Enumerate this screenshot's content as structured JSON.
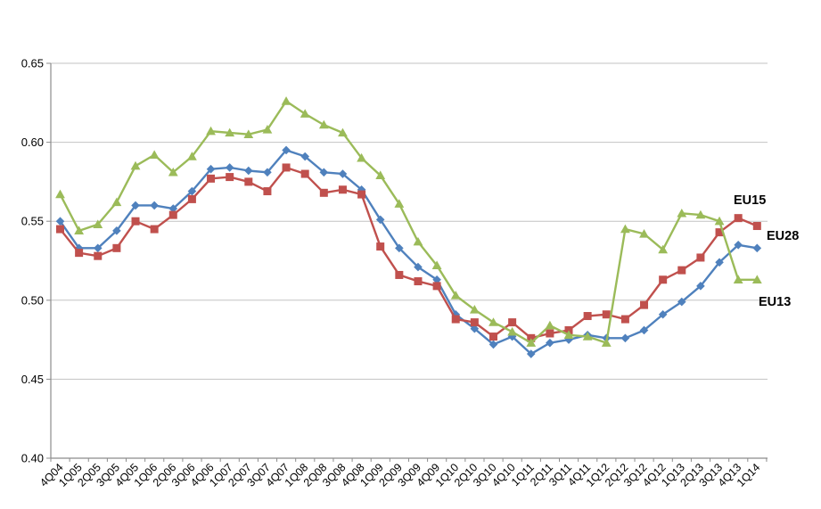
{
  "chart_data": {
    "type": "line",
    "title": "",
    "xlabel": "",
    "ylabel": "",
    "ylim": [
      0.4,
      0.65
    ],
    "ytick_step": 0.05,
    "ytick_labels": [
      "0.40",
      "0.45",
      "0.50",
      "0.55",
      "0.60",
      "0.65"
    ],
    "grid": true,
    "legend_position": "end-of-line-annotations",
    "categories": [
      "4Q04",
      "1Q05",
      "2Q05",
      "3Q05",
      "4Q05",
      "1Q06",
      "2Q06",
      "3Q06",
      "4Q06",
      "1Q07",
      "2Q07",
      "3Q07",
      "4Q07",
      "1Q08",
      "2Q08",
      "3Q08",
      "4Q08",
      "1Q09",
      "2Q09",
      "3Q09",
      "4Q09",
      "1Q10",
      "2Q10",
      "3Q10",
      "4Q10",
      "1Q11",
      "2Q11",
      "3Q11",
      "4Q11",
      "1Q12",
      "2Q12",
      "3Q12",
      "4Q12",
      "1Q13",
      "2Q13",
      "3Q13",
      "4Q13",
      "1Q14"
    ],
    "series": [
      {
        "name": "EU28",
        "color": "#4F81BD",
        "marker": "diamond",
        "values": [
          0.55,
          0.533,
          0.533,
          0.544,
          0.56,
          0.56,
          0.558,
          0.569,
          0.583,
          0.584,
          0.582,
          0.581,
          0.595,
          0.591,
          0.581,
          0.58,
          0.57,
          0.551,
          0.533,
          0.521,
          0.513,
          0.491,
          0.482,
          0.472,
          0.477,
          0.466,
          0.473,
          0.475,
          0.478,
          0.476,
          0.476,
          0.481,
          0.491,
          0.499,
          0.509,
          0.524,
          0.535,
          0.533
        ]
      },
      {
        "name": "EU15",
        "color": "#C0504D",
        "marker": "square",
        "values": [
          0.545,
          0.53,
          0.528,
          0.533,
          0.55,
          0.545,
          0.554,
          0.564,
          0.577,
          0.578,
          0.575,
          0.569,
          0.584,
          0.58,
          0.568,
          0.57,
          0.567,
          0.534,
          0.516,
          0.512,
          0.509,
          0.488,
          0.486,
          0.477,
          0.486,
          0.476,
          0.479,
          0.481,
          0.49,
          0.491,
          0.488,
          0.497,
          0.513,
          0.519,
          0.527,
          0.543,
          0.552,
          0.547
        ]
      },
      {
        "name": "EU13",
        "color": "#9BBB59",
        "marker": "triangle",
        "values": [
          0.567,
          0.544,
          0.548,
          0.562,
          0.585,
          0.592,
          0.581,
          0.591,
          0.607,
          0.606,
          0.605,
          0.608,
          0.626,
          0.618,
          0.611,
          0.606,
          0.59,
          0.579,
          0.561,
          0.537,
          0.522,
          0.503,
          0.494,
          0.486,
          0.48,
          0.473,
          0.484,
          0.478,
          0.477,
          0.473,
          0.545,
          0.542,
          0.532,
          0.555,
          0.554,
          0.55,
          0.513,
          0.513
        ]
      }
    ],
    "annotations": [
      {
        "text": "EU15",
        "series": "EU15"
      },
      {
        "text": "EU28",
        "series": "EU28"
      },
      {
        "text": "EU13",
        "series": "EU13"
      }
    ],
    "colors": {
      "axis": "#8C8C8C",
      "grid": "#C3C3C3",
      "tick_label": "#000000",
      "annotation_text": "#000000",
      "background": "#FFFFFF"
    }
  }
}
